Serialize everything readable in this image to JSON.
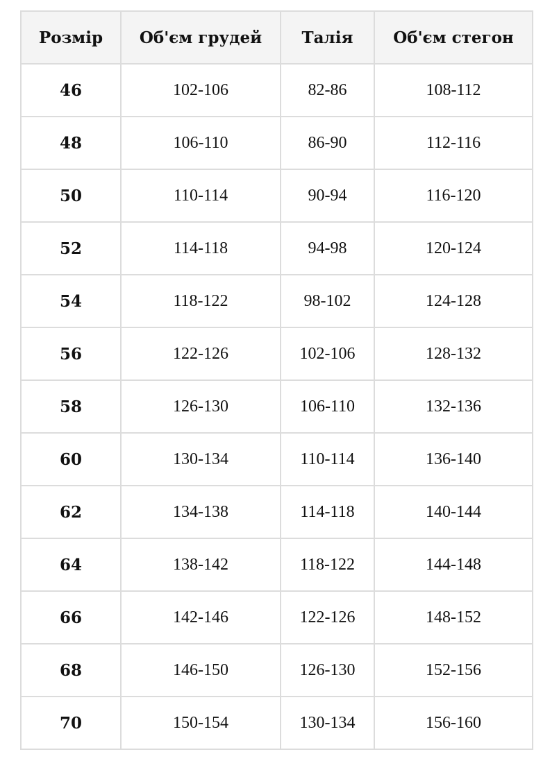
{
  "table": {
    "headers": [
      "Розмір",
      "Об'єм грудей",
      "Талія",
      "Об'єм стегон"
    ],
    "rows": [
      [
        "46",
        "102-106",
        "82-86",
        "108-112"
      ],
      [
        "48",
        "106-110",
        "86-90",
        "112-116"
      ],
      [
        "50",
        "110-114",
        "90-94",
        "116-120"
      ],
      [
        "52",
        "114-118",
        "94-98",
        "120-124"
      ],
      [
        "54",
        "118-122",
        "98-102",
        "124-128"
      ],
      [
        "56",
        "122-126",
        "102-106",
        "128-132"
      ],
      [
        "58",
        "126-130",
        "106-110",
        "132-136"
      ],
      [
        "60",
        "130-134",
        "110-114",
        "136-140"
      ],
      [
        "62",
        "134-138",
        "114-118",
        "140-144"
      ],
      [
        "64",
        "138-142",
        "118-122",
        "144-148"
      ],
      [
        "66",
        "142-146",
        "122-126",
        "148-152"
      ],
      [
        "68",
        "146-150",
        "126-130",
        "152-156"
      ],
      [
        "70",
        "150-154",
        "130-134",
        "156-160"
      ]
    ]
  }
}
